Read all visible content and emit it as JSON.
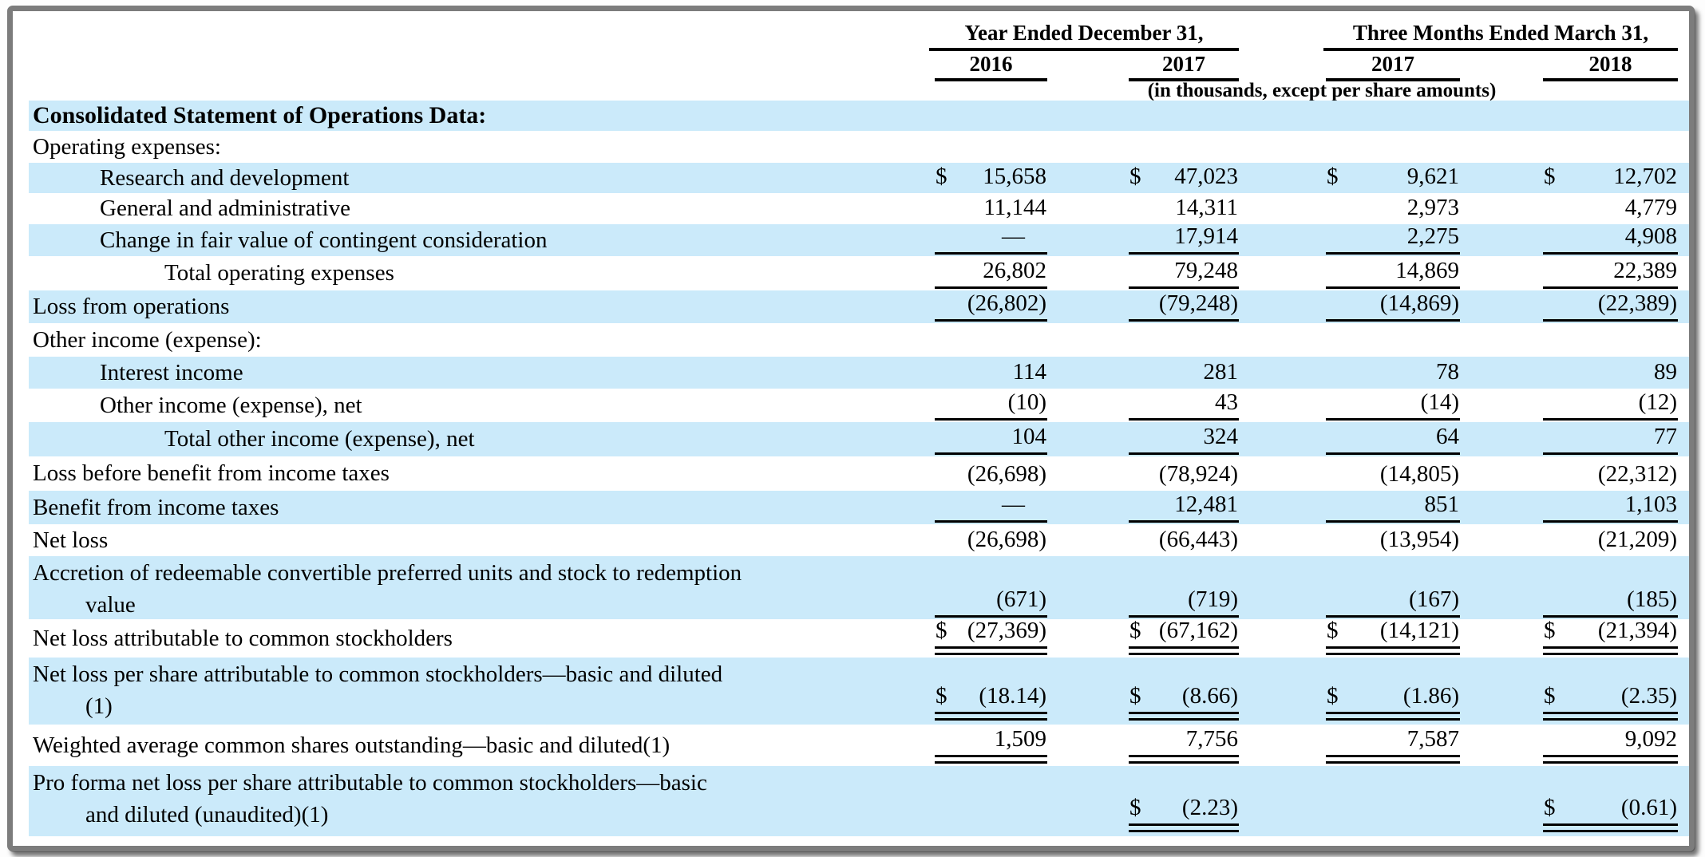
{
  "document": {
    "kind": "financial-statement-table",
    "currency_symbol": "$"
  },
  "colors": {
    "highlight": "#cbeafa",
    "rule": "#000000",
    "frame": "#7c7c7c",
    "page_background": "#ffffff"
  },
  "header": {
    "group1": "Year Ended December 31,",
    "group2": "Three Months Ended March 31,",
    "columns": [
      "2016",
      "2017",
      "2017",
      "2018"
    ],
    "note": "(in thousands, except per share amounts)"
  },
  "rows": [
    {
      "label": "Consolidated Statement of Operations Data:",
      "bold": true,
      "highlight": true,
      "indent": 0,
      "values": null
    },
    {
      "label": "Operating expenses:",
      "indent": 0,
      "values": null
    },
    {
      "label": "Research and development",
      "indent": 1,
      "highlight": true,
      "dollar": true,
      "values": [
        "15,658",
        "47,023",
        "9,621",
        "12,702"
      ]
    },
    {
      "label": "General and administrative",
      "indent": 1,
      "values": [
        "11,144",
        "14,311",
        "2,973",
        "4,779"
      ]
    },
    {
      "label": "Change in fair value of contingent consideration",
      "indent": 1,
      "highlight": true,
      "values": [
        "—",
        "17,914",
        "2,275",
        "4,908"
      ],
      "rule": "single"
    },
    {
      "label": "Total operating expenses",
      "indent": 2,
      "values": [
        "26,802",
        "79,248",
        "14,869",
        "22,389"
      ],
      "rule": "single"
    },
    {
      "label": "Loss from operations",
      "indent": 0,
      "highlight": true,
      "values": [
        "(26,802)",
        "(79,248)",
        "(14,869)",
        "(22,389)"
      ],
      "rule": "single"
    },
    {
      "label": "Other income (expense):",
      "indent": 0,
      "values": null
    },
    {
      "label": "Interest income",
      "indent": 1,
      "highlight": true,
      "values": [
        "114",
        "281",
        "78",
        "89"
      ]
    },
    {
      "label": "Other income (expense), net",
      "indent": 1,
      "values": [
        "(10)",
        "43",
        "(14)",
        "(12)"
      ],
      "rule": "single"
    },
    {
      "label": "Total other income (expense), net",
      "indent": 2,
      "highlight": true,
      "values": [
        "104",
        "324",
        "64",
        "77"
      ],
      "rule": "single"
    },
    {
      "label": "Loss before benefit from income taxes",
      "indent": 0,
      "values": [
        "(26,698)",
        "(78,924)",
        "(14,805)",
        "(22,312)"
      ]
    },
    {
      "label": "Benefit from income taxes",
      "indent": 0,
      "highlight": true,
      "values": [
        "—",
        "12,481",
        "851",
        "1,103"
      ],
      "rule": "single"
    },
    {
      "label": "Net loss",
      "indent": 0,
      "values": [
        "(26,698)",
        "(66,443)",
        "(13,954)",
        "(21,209)"
      ]
    },
    {
      "label": "Accretion of redeemable convertible preferred units and stock to redemption",
      "label2": "value",
      "indent": 0,
      "highlight": true,
      "values": [
        "(671)",
        "(719)",
        "(167)",
        "(185)"
      ],
      "rule": "single",
      "twoline": true
    },
    {
      "label": "Net loss attributable to common stockholders",
      "indent": 0,
      "dollar": true,
      "values": [
        "(27,369)",
        "(67,162)",
        "(14,121)",
        "(21,394)"
      ],
      "rule": "double"
    },
    {
      "label": "Net loss per share attributable to common stockholders—basic and diluted",
      "label2": "(1)",
      "indent": 0,
      "highlight": true,
      "dollar": true,
      "values": [
        "(18.14)",
        "(8.66)",
        "(1.86)",
        "(2.35)"
      ],
      "rule": "double",
      "twoline": true
    },
    {
      "label": "Weighted average common shares outstanding—basic and diluted(1)",
      "indent": 0,
      "values": [
        "1,509",
        "7,756",
        "7,587",
        "9,092"
      ],
      "rule": "double"
    },
    {
      "label": "Pro forma net loss per share attributable to common stockholders—basic",
      "label2": "and diluted (unaudited)(1)",
      "indent": 0,
      "highlight": true,
      "dollar": true,
      "values": [
        null,
        "(2.23)",
        null,
        "(0.61)"
      ],
      "rule": "double",
      "twoline": true
    }
  ]
}
